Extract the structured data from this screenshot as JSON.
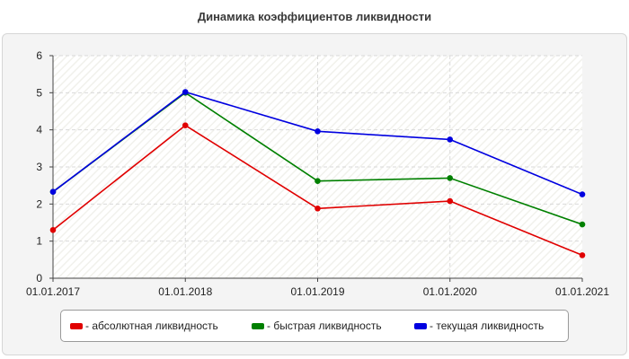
{
  "title": "Динамика коэффициентов ликвидности",
  "chart_data": {
    "type": "line",
    "title": "Динамика коэффициентов ликвидности",
    "xlabel": "",
    "ylabel": "",
    "categories": [
      "01.01.2017",
      "01.01.2018",
      "01.01.2019",
      "01.01.2020",
      "01.01.2021"
    ],
    "ylim": [
      0,
      6
    ],
    "yticks": [
      "0",
      "1",
      "2",
      "3",
      "4",
      "5",
      "6"
    ],
    "grid": true,
    "legend_position": "bottom",
    "series": [
      {
        "name": "абсолютная ликвидность",
        "color": "#e00000",
        "values": [
          1.3,
          4.12,
          1.88,
          2.08,
          0.62
        ]
      },
      {
        "name": "быстрая ликвидность",
        "color": "#008000",
        "values": [
          2.33,
          5.0,
          2.62,
          2.7,
          1.45
        ]
      },
      {
        "name": "текущая ликвидность",
        "color": "#0000e0",
        "values": [
          2.33,
          5.02,
          3.96,
          3.74,
          2.26
        ]
      }
    ]
  },
  "legend": {
    "items": [
      {
        "label": "- абсолютная ликвидность",
        "color": "#e00000"
      },
      {
        "label": "- быстрая ликвидность",
        "color": "#008000"
      },
      {
        "label": "- текущая ликвидность",
        "color": "#0000e0"
      }
    ]
  }
}
